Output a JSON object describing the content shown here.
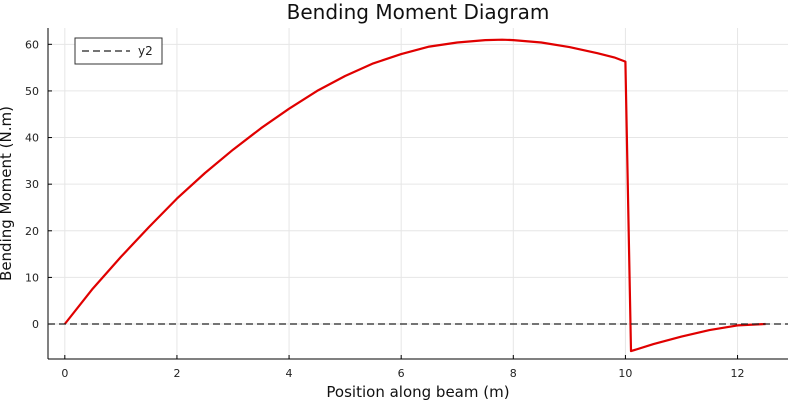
{
  "chart_data": {
    "type": "line",
    "title": "Bending Moment Diagram",
    "xlabel": "Position along beam (m)",
    "ylabel": "Bending Moment (N.m)",
    "xlim": [
      -0.3,
      12.9
    ],
    "ylim": [
      -7.5,
      63.5
    ],
    "xticks": [
      0,
      2,
      4,
      6,
      8,
      10,
      12
    ],
    "yticks": [
      0,
      10,
      20,
      30,
      40,
      50,
      60
    ],
    "grid": true,
    "legend": {
      "placement": "top-left",
      "entries": [
        "y2"
      ]
    },
    "series": [
      {
        "color": "#e00000",
        "x": [
          0,
          0.5,
          1,
          1.5,
          2,
          2.5,
          3,
          3.5,
          4,
          4.5,
          5,
          5.5,
          6,
          6.5,
          7,
          7.5,
          7.8,
          8,
          8.5,
          9,
          9.5,
          9.8,
          10,
          10.1,
          10.5,
          11,
          11.5,
          12,
          12.5
        ],
        "y": [
          0,
          7.6,
          14.4,
          20.8,
          26.9,
          32.4,
          37.4,
          42.0,
          46.2,
          50.0,
          53.2,
          55.9,
          57.9,
          59.5,
          60.4,
          60.9,
          61.0,
          60.9,
          60.4,
          59.4,
          58.1,
          57.2,
          56.3,
          -5.8,
          -4.3,
          -2.7,
          -1.3,
          -0.3,
          0
        ]
      },
      {
        "name": "y2",
        "color": "#222222",
        "dash": "dashed",
        "x": [
          -0.3,
          12.9
        ],
        "y": [
          0,
          0
        ]
      }
    ]
  }
}
